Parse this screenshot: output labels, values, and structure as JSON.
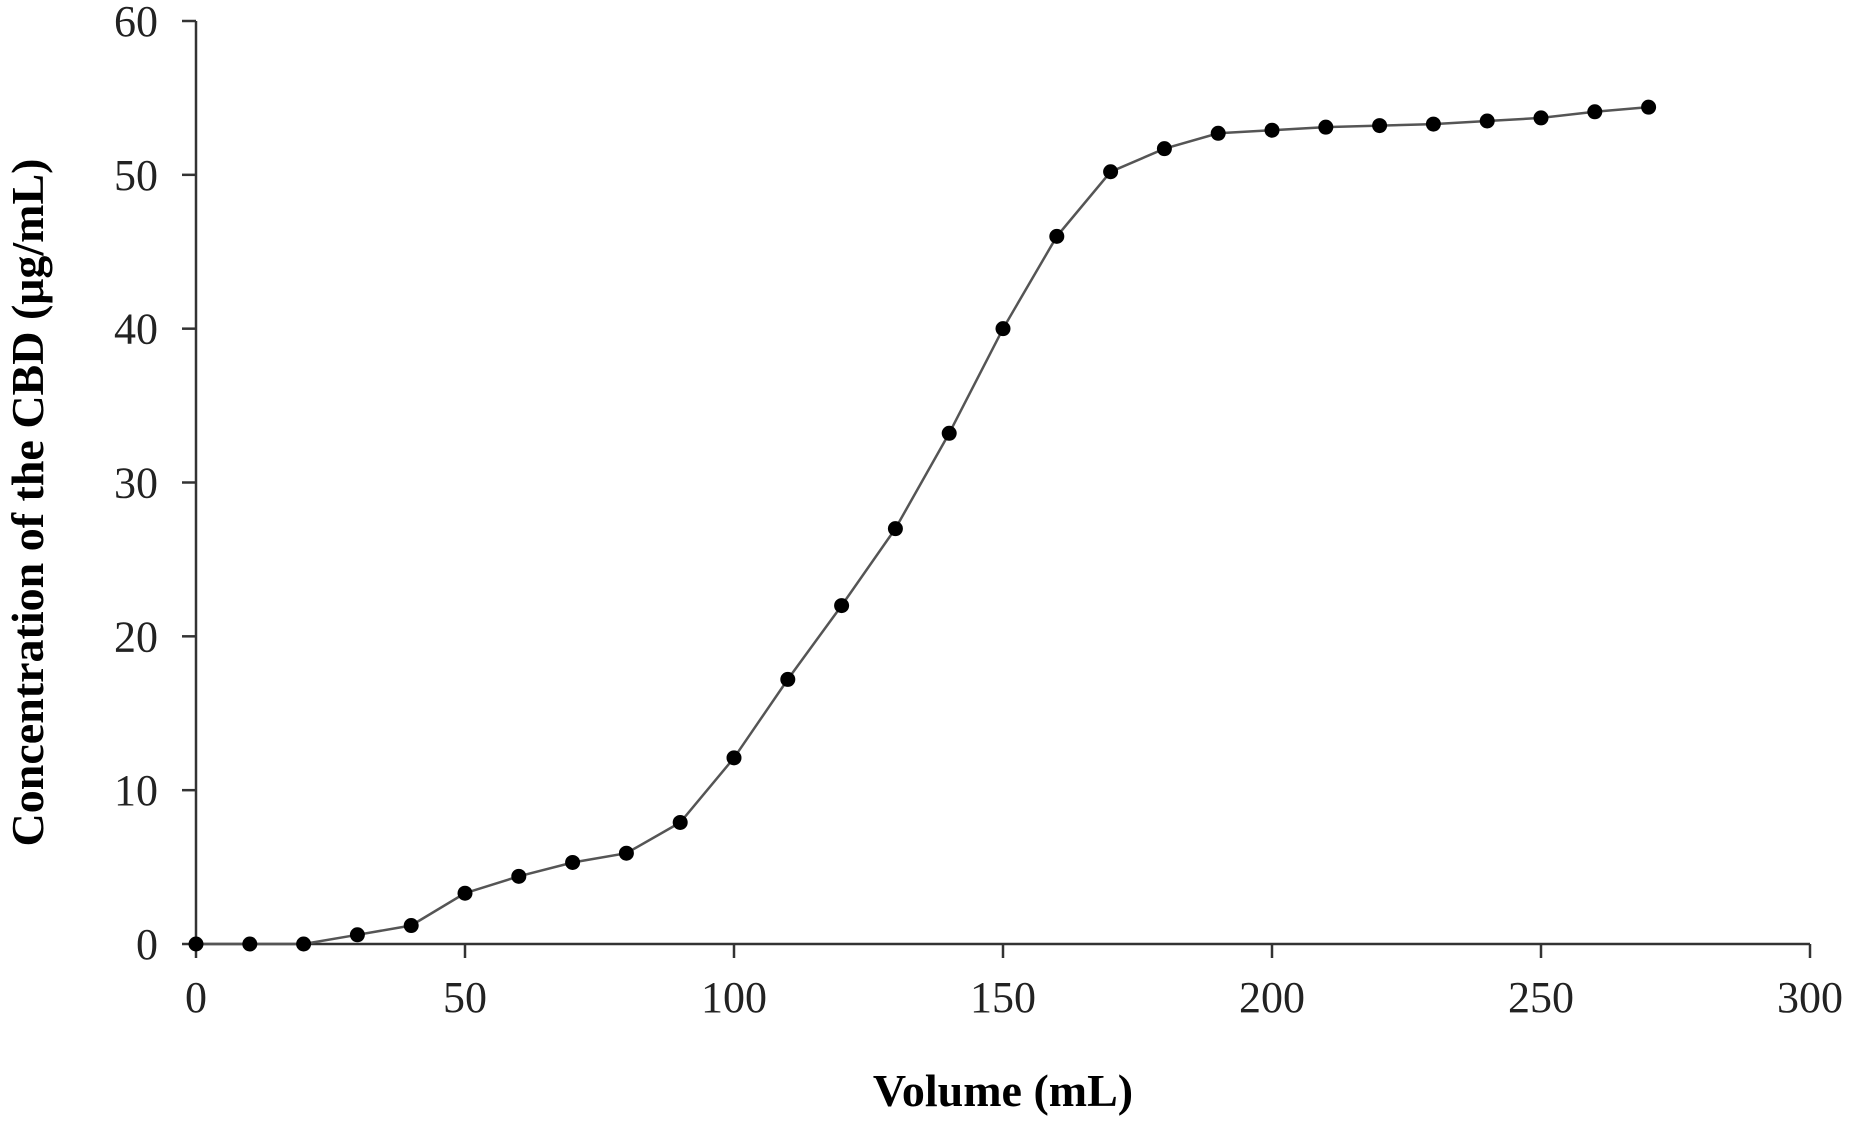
{
  "chart_data": {
    "type": "line",
    "title": "",
    "xlabel": "Volume (mL)",
    "ylabel": "Concentration of the CBD (μg/mL)",
    "xlim": [
      0,
      300
    ],
    "ylim": [
      0,
      60
    ],
    "x_ticks": [
      0,
      50,
      100,
      150,
      200,
      250,
      300
    ],
    "y_ticks": [
      0,
      10,
      20,
      30,
      40,
      50,
      60
    ],
    "x_tick_labels": [
      "0",
      "50",
      "100",
      "150",
      "200",
      "250",
      "300"
    ],
    "y_tick_labels": [
      "0",
      "10",
      "20",
      "30",
      "40",
      "50",
      "60"
    ],
    "grid": false,
    "legend": "none",
    "line_color": "#555555",
    "marker_color": "#000000",
    "marker": "circle",
    "series": [
      {
        "x": [
          0,
          10,
          20,
          30,
          40,
          50,
          60,
          70,
          80,
          90,
          100,
          110,
          120,
          130,
          140,
          150,
          160,
          170,
          180,
          190,
          200,
          210,
          220,
          230,
          240,
          250,
          260,
          270
        ],
        "y": [
          0,
          0,
          0,
          0.6,
          1.2,
          3.3,
          4.4,
          5.3,
          5.9,
          7.9,
          12.1,
          17.2,
          22.0,
          27.0,
          33.2,
          40.0,
          46.0,
          50.2,
          51.7,
          52.7,
          52.9,
          53.1,
          53.2,
          53.3,
          53.5,
          53.7,
          54.1,
          54.4
        ]
      }
    ]
  }
}
